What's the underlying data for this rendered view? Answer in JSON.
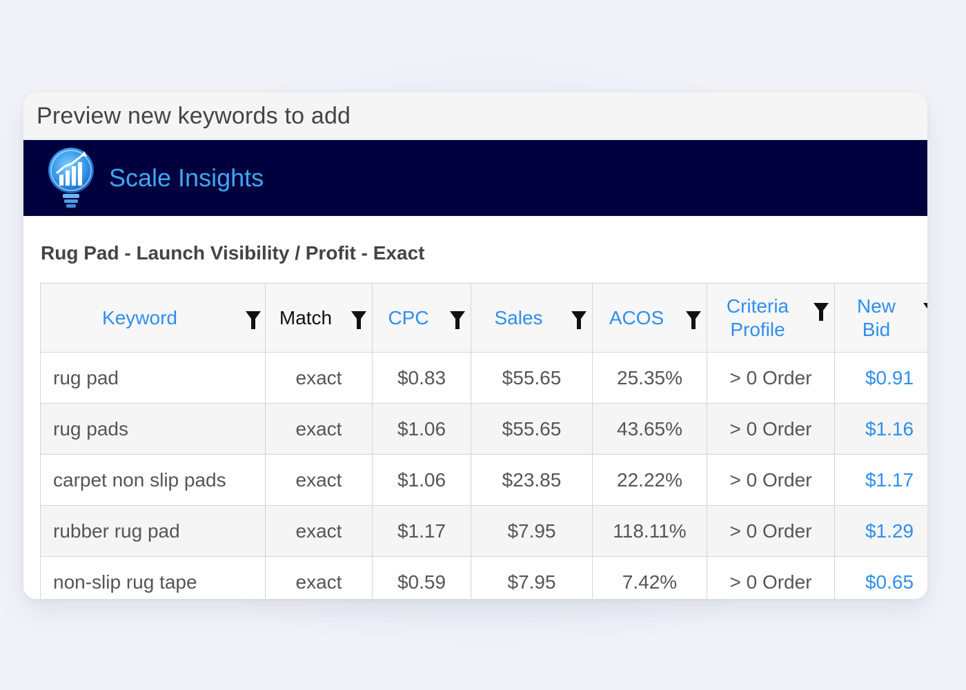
{
  "card": {
    "title": "Preview new keywords to add"
  },
  "brand": {
    "name": "Scale Insights",
    "logo_icon": "lightbulb-chart-logo"
  },
  "campaign": {
    "name": "Rug Pad - Launch Visibility / Profit - Exact"
  },
  "table": {
    "columns": [
      {
        "label": "Keyword",
        "filter_icon": "filter-icon"
      },
      {
        "label": "Match",
        "filter_icon": "filter-icon"
      },
      {
        "label": "CPC",
        "filter_icon": "filter-icon"
      },
      {
        "label": "Sales",
        "filter_icon": "filter-icon"
      },
      {
        "label": "ACOS",
        "filter_icon": "filter-icon"
      },
      {
        "label": "Criteria Profile",
        "filter_icon": "filter-icon"
      },
      {
        "label": "New Bid",
        "filter_icon": "filter-icon"
      }
    ],
    "rows": [
      {
        "keyword": "rug pad",
        "match": "exact",
        "cpc": "$0.83",
        "sales": "$55.65",
        "acos": "25.35%",
        "criteria": "> 0 Order",
        "new_bid": "$0.91"
      },
      {
        "keyword": "rug pads",
        "match": "exact",
        "cpc": "$1.06",
        "sales": "$55.65",
        "acos": "43.65%",
        "criteria": "> 0 Order",
        "new_bid": "$1.16"
      },
      {
        "keyword": "carpet non slip pads",
        "match": "exact",
        "cpc": "$1.06",
        "sales": "$23.85",
        "acos": "22.22%",
        "criteria": "> 0 Order",
        "new_bid": "$1.17"
      },
      {
        "keyword": "rubber rug pad",
        "match": "exact",
        "cpc": "$1.17",
        "sales": "$7.95",
        "acos": "118.11%",
        "criteria": "> 0 Order",
        "new_bid": "$1.29"
      },
      {
        "keyword": "non-slip rug tape",
        "match": "exact",
        "cpc": "$0.59",
        "sales": "$7.95",
        "acos": "7.42%",
        "criteria": "> 0 Order",
        "new_bid": "$0.65"
      }
    ]
  },
  "colors": {
    "brand_bar": "#00003f",
    "accent_blue": "#2f8ef0",
    "brand_text": "#3fa8f4"
  }
}
